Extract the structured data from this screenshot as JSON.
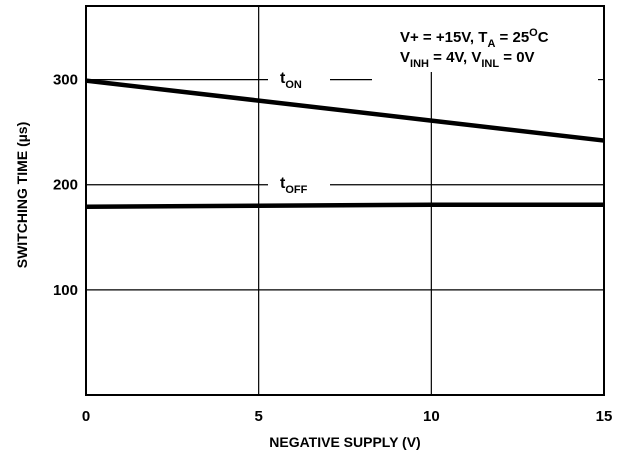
{
  "chart_data": {
    "type": "line",
    "title": "",
    "xlabel": "NEGATIVE SUPPLY (V)",
    "ylabel": "SWITCHING TIME (µs)",
    "xlim": [
      0,
      15
    ],
    "ylim": [
      0,
      370
    ],
    "x_ticks": [
      0,
      5,
      10,
      15
    ],
    "x_tick_labels": [
      "0",
      "5",
      "10",
      "15"
    ],
    "y_ticks": [
      100,
      200,
      300
    ],
    "y_tick_labels": [
      "100",
      "200",
      "300"
    ],
    "grid": true,
    "series": [
      {
        "name_main": "t",
        "name_sub": "ON",
        "x": [
          0,
          5,
          10,
          15
        ],
        "y": [
          299,
          280,
          261,
          242
        ]
      },
      {
        "name_main": "t",
        "name_sub": "OFF",
        "x": [
          0,
          5,
          10,
          15
        ],
        "y": [
          179,
          180,
          181,
          181
        ]
      }
    ],
    "annotations": {
      "line1": {
        "a": "V+ = +15V, T",
        "a_sub": "A",
        "b": " = 25",
        "b_sup": "O",
        "c": "C"
      },
      "line2": {
        "a": "V",
        "a_sub": "INH",
        "b": " = 4V, V",
        "b_sub": "INL",
        "c": " = 0V"
      }
    }
  }
}
